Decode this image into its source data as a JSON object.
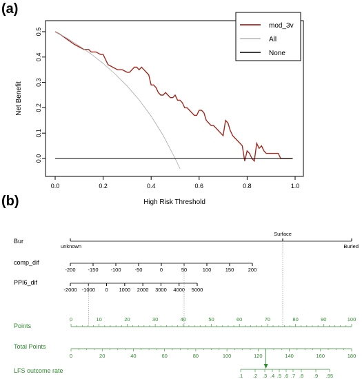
{
  "panels": {
    "a": "(a)",
    "b": "(b)"
  },
  "chart_data": [
    {
      "type": "line",
      "title": "",
      "xlabel": "High Risk Threshold",
      "ylabel": "Net Benefit",
      "xlim": [
        0,
        1
      ],
      "ylim": [
        -0.05,
        0.52
      ],
      "x_ticks": [
        "0.0",
        "0.2",
        "0.4",
        "0.6",
        "0.8",
        "1.0"
      ],
      "y_ticks": [
        "0.0",
        "0.1",
        "0.2",
        "0.3",
        "0.4",
        "0.5"
      ],
      "legend_position": "top-right",
      "series": [
        {
          "name": "mod_3v",
          "color": "#a0281e",
          "x": [
            0.0,
            0.02,
            0.05,
            0.08,
            0.1,
            0.12,
            0.14,
            0.15,
            0.17,
            0.19,
            0.2,
            0.22,
            0.24,
            0.26,
            0.28,
            0.3,
            0.31,
            0.32,
            0.33,
            0.34,
            0.35,
            0.36,
            0.37,
            0.38,
            0.39,
            0.4,
            0.41,
            0.42,
            0.43,
            0.44,
            0.45,
            0.46,
            0.47,
            0.48,
            0.49,
            0.5,
            0.51,
            0.52,
            0.53,
            0.54,
            0.55,
            0.56,
            0.57,
            0.58,
            0.59,
            0.6,
            0.61,
            0.62,
            0.63,
            0.64,
            0.65,
            0.66,
            0.67,
            0.68,
            0.69,
            0.7,
            0.71,
            0.72,
            0.73,
            0.74,
            0.75,
            0.76,
            0.77,
            0.78,
            0.79,
            0.8,
            0.81,
            0.82,
            0.83,
            0.84,
            0.85,
            0.86,
            0.87,
            0.88,
            0.89,
            0.9,
            0.91,
            0.92,
            0.93,
            0.94,
            0.95,
            0.96,
            0.97,
            0.98,
            0.99
          ],
          "y": [
            0.5,
            0.49,
            0.47,
            0.45,
            0.44,
            0.43,
            0.43,
            0.42,
            0.42,
            0.41,
            0.41,
            0.37,
            0.36,
            0.35,
            0.35,
            0.34,
            0.34,
            0.35,
            0.36,
            0.36,
            0.35,
            0.36,
            0.35,
            0.34,
            0.33,
            0.29,
            0.29,
            0.28,
            0.26,
            0.25,
            0.25,
            0.26,
            0.25,
            0.24,
            0.24,
            0.25,
            0.23,
            0.23,
            0.22,
            0.2,
            0.2,
            0.19,
            0.18,
            0.17,
            0.17,
            0.19,
            0.19,
            0.18,
            0.15,
            0.14,
            0.13,
            0.13,
            0.12,
            0.11,
            0.1,
            0.09,
            0.15,
            0.14,
            0.11,
            0.09,
            0.08,
            0.07,
            0.06,
            0.05,
            -0.01,
            0.03,
            0.02,
            0.0,
            -0.01,
            0.06,
            0.04,
            0.05,
            0.03,
            0.02,
            0.02,
            0.02,
            0.02,
            0.02,
            0.02,
            0.0,
            0.0,
            0.0,
            0.0,
            0.0,
            0.0
          ]
        },
        {
          "name": "All",
          "color": "#a8a8a8",
          "x": [
            0.0,
            0.05,
            0.1,
            0.15,
            0.2,
            0.25,
            0.3,
            0.35,
            0.4,
            0.45,
            0.5,
            0.52
          ],
          "y": [
            0.5,
            0.474,
            0.444,
            0.412,
            0.375,
            0.333,
            0.286,
            0.231,
            0.167,
            0.091,
            0.0,
            -0.04
          ]
        },
        {
          "name": "None",
          "color": "#000000",
          "x": [
            0.0,
            0.99
          ],
          "y": [
            0.0,
            0.0
          ]
        }
      ]
    },
    {
      "type": "nomogram",
      "rows": [
        {
          "label": "Bur",
          "left_label": "unknown",
          "right_label": "Buried",
          "mid_label": "Surface"
        },
        {
          "label": "comp_dif",
          "ticks": [
            "-200",
            "-150",
            "-100",
            "-50",
            "0",
            "50",
            "100",
            "150",
            "200"
          ]
        },
        {
          "label": "PPI6_dif",
          "ticks": [
            "-2000",
            "-1000",
            "0",
            "1000",
            "2000",
            "3000",
            "4000",
            "5000"
          ]
        },
        {
          "label": "Points",
          "ticks": [
            "0",
            "10",
            "20",
            "30",
            "40",
            "50",
            "60",
            "70",
            "80",
            "90",
            "100"
          ]
        },
        {
          "label": "Total Points",
          "ticks": [
            "0",
            "20",
            "40",
            "60",
            "80",
            "100",
            "120",
            "140",
            "160",
            "180"
          ]
        },
        {
          "label": "LFS outcome rate",
          "ticks": [
            ".1",
            ".2",
            ".3",
            ".4",
            ".5",
            ".6",
            ".7",
            ".8",
            ".9",
            ".95"
          ]
        }
      ],
      "selected": {
        "Bur": "Surface",
        "comp_dif": 50,
        "PPI6_dif": -1000,
        "points_bur": 75,
        "points_comp": 40,
        "points_ppi": 10,
        "total_points": 125,
        "outcome_rate": 0.3
      }
    }
  ]
}
